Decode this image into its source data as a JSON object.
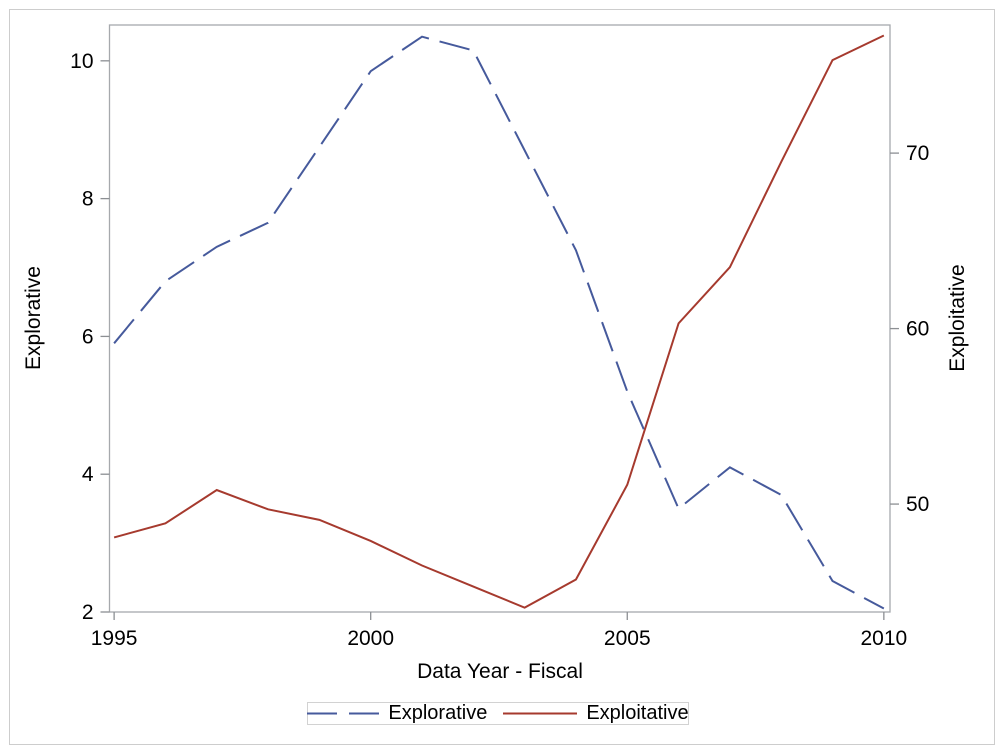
{
  "figure": {
    "background": "#ffffff",
    "border_color": "#cdcdcd",
    "frame_color": "#a6a9ad",
    "tick_color": "#8c8f93"
  },
  "legend": {
    "items": [
      {
        "label": "Explorative",
        "style": "dashed",
        "color": "#465a9c"
      },
      {
        "label": "Exploitative",
        "style": "solid",
        "color": "#a63a2e"
      }
    ]
  },
  "chart_data": {
    "type": "line",
    "title": "",
    "x": [
      1995,
      1996,
      1997,
      1998,
      1999,
      2000,
      2001,
      2002,
      2003,
      2004,
      2005,
      2006,
      2007,
      2008,
      2009,
      2010
    ],
    "series": [
      {
        "name": "Explorative",
        "axis": "left",
        "color": "#465a9c",
        "dash": [
          31,
          11
        ],
        "width": 2,
        "values": [
          5.9,
          6.8,
          7.3,
          7.65,
          8.75,
          9.85,
          10.35,
          10.15,
          8.7,
          7.25,
          5.2,
          3.5,
          4.1,
          3.7,
          2.45,
          2.05
        ]
      },
      {
        "name": "Exploitative",
        "axis": "right",
        "color": "#a63a2e",
        "dash": null,
        "width": 2,
        "values": [
          48.1,
          48.9,
          50.8,
          49.7,
          49.1,
          47.9,
          46.5,
          45.3,
          44.1,
          45.7,
          51.1,
          60.3,
          63.5,
          69.5,
          75.3,
          76.7
        ]
      }
    ],
    "xlabel": "Data Year - Fiscal",
    "ylabel_left": "Explorative",
    "ylabel_right": "Exploitative",
    "xlim": [
      1994.91,
      2010.12
    ],
    "ylim_left": [
      2,
      10.52
    ],
    "ylim_right": [
      43.85,
      77.3
    ],
    "xticks": [
      1995,
      2000,
      2005,
      2010
    ],
    "yticks_left": [
      2,
      4,
      6,
      8,
      10
    ],
    "yticks_right": [
      50,
      60,
      70
    ],
    "grid": false,
    "legend_position": "bottom-center"
  }
}
